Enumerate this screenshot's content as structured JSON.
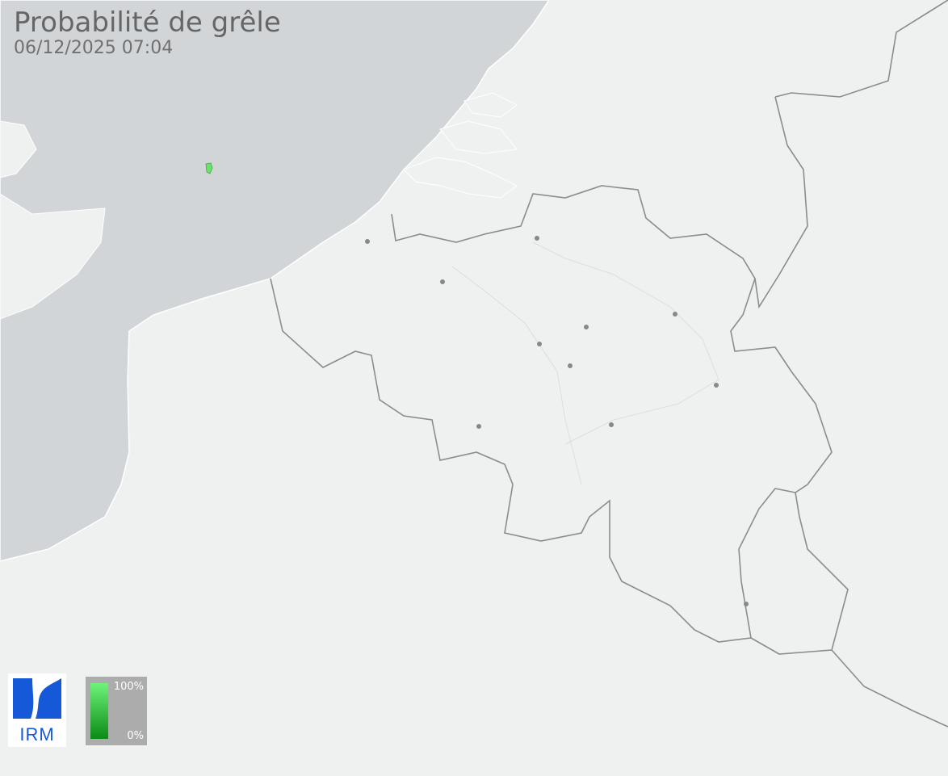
{
  "header": {
    "title": "Probabilité de grêle",
    "timestamp": "06/12/2025 07:04"
  },
  "legend": {
    "max_label": "100%",
    "min_label": "0%",
    "gradient_colors": [
      "#6ff47a",
      "#0a8a16"
    ]
  },
  "logo": {
    "text": "IRM",
    "color": "#1558d8"
  },
  "map": {
    "land_color": "#eff0f0",
    "sea_color": "#d2d5d8",
    "border_color": "#8c8c8c",
    "city_dot_color": "#888888",
    "hail_cell_color": "#6ee06e"
  }
}
